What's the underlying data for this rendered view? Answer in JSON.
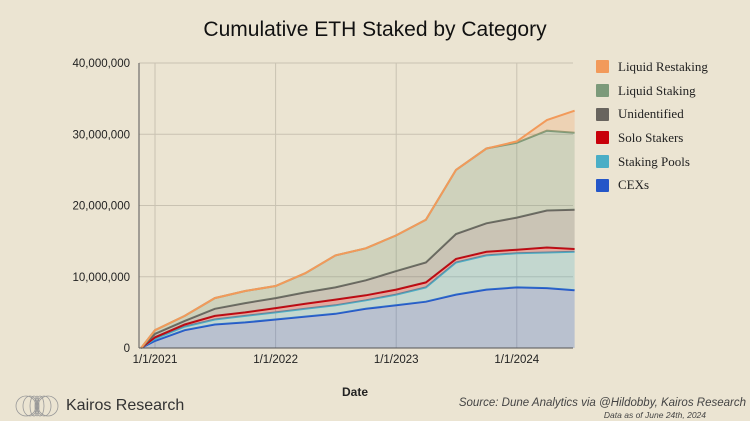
{
  "chart_data": {
    "type": "area",
    "stacked": true,
    "title": "Cumulative ETH Staked by Category",
    "xlabel": "Date",
    "ylabel": "",
    "ylim": [
      0,
      40000000
    ],
    "yticks": [
      "0",
      "10,000,000",
      "20,000,000",
      "30,000,000",
      "40,000,000"
    ],
    "ytick_values": [
      0,
      10000000,
      20000000,
      30000000,
      40000000
    ],
    "xticks": [
      "1/1/2021",
      "1/1/2022",
      "1/1/2023",
      "1/1/2024"
    ],
    "xtick_values": [
      "2021-01-01",
      "2022-01-01",
      "2023-01-01",
      "2024-01-01"
    ],
    "grid": true,
    "legend_position": "right",
    "x": [
      "2020-11-20",
      "2021-01-01",
      "2021-04-01",
      "2021-07-01",
      "2021-10-01",
      "2022-01-01",
      "2022-04-01",
      "2022-07-01",
      "2022-10-01",
      "2023-01-01",
      "2023-04-01",
      "2023-07-01",
      "2023-10-01",
      "2024-01-01",
      "2024-04-01",
      "2024-06-24"
    ],
    "series": [
      {
        "name": "CEXs",
        "color": "#2456c8",
        "values": [
          0,
          1000000,
          2500000,
          3300000,
          3600000,
          4000000,
          4400000,
          4800000,
          5500000,
          6000000,
          6500000,
          7500000,
          8200000,
          8500000,
          8400000,
          8100000
        ]
      },
      {
        "name": "Staking Pools",
        "color": "#4aaec6",
        "values": [
          0,
          300000,
          500000,
          700000,
          900000,
          1000000,
          1100000,
          1200000,
          1200000,
          1500000,
          2000000,
          4500000,
          4800000,
          4800000,
          5000000,
          5400000
        ]
      },
      {
        "name": "Solo Stakers",
        "color": "#c8000a",
        "values": [
          0,
          200000,
          300000,
          500000,
          500000,
          600000,
          700000,
          800000,
          700000,
          700000,
          700000,
          500000,
          500000,
          500000,
          700000,
          400000
        ]
      },
      {
        "name": "Unidentified",
        "color": "#68645e",
        "values": [
          0,
          500000,
          500000,
          1000000,
          1300000,
          1400000,
          1600000,
          1700000,
          2100000,
          2600000,
          2800000,
          3500000,
          4000000,
          4500000,
          5200000,
          5500000
        ]
      },
      {
        "name": "Liquid Staking",
        "color": "#7c9a7a",
        "values": [
          0,
          500000,
          700000,
          1500000,
          1700000,
          1700000,
          2700000,
          4500000,
          4500000,
          5000000,
          6000000,
          9000000,
          10500000,
          10500000,
          11200000,
          10800000
        ]
      },
      {
        "name": "Liquid Restaking",
        "color": "#f29a5a",
        "values": [
          0,
          0,
          0,
          0,
          0,
          0,
          0,
          0,
          0,
          0,
          0,
          0,
          0,
          200000,
          1500000,
          3100000
        ]
      }
    ],
    "legend_order": [
      "Liquid Restaking",
      "Liquid Staking",
      "Unidentified",
      "Solo Stakers",
      "Staking Pools",
      "CEXs"
    ]
  },
  "branding": {
    "name": "Kairos Research"
  },
  "source": "Source: Dune Analytics via @Hildobby, Kairos Research",
  "as_of": "Data as of June 24th, 2024"
}
